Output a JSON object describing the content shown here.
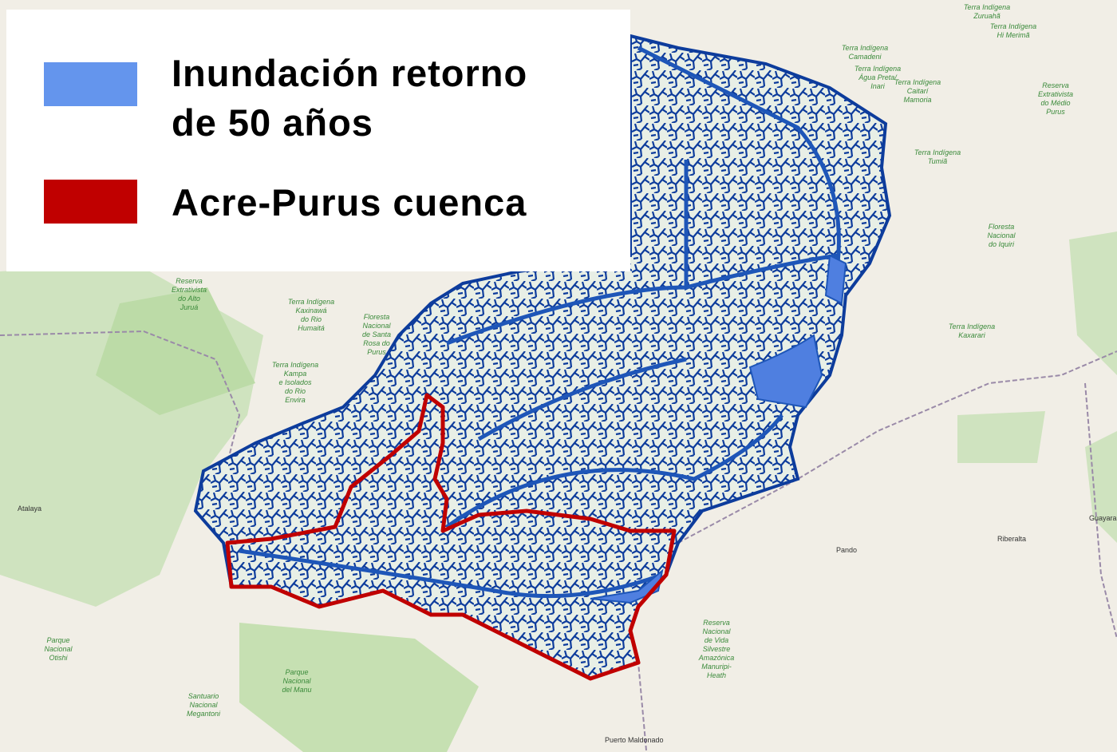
{
  "legend": {
    "items": [
      {
        "label": [
          "Inundación retorno",
          "de 50 años"
        ],
        "color": "#6495ed"
      },
      {
        "label": [
          "Acre-Purus cuenca"
        ],
        "color": "#c00000"
      }
    ]
  },
  "map_labels": [
    [
      "Terra Indígena",
      "Zuruahã"
    ],
    [
      "Terra Indígena",
      "Hi Merimã"
    ],
    [
      "Terra Indígena",
      "Camadeni"
    ],
    [
      "Terra Indígena",
      "Água Preta/",
      "Inari"
    ],
    [
      "Terra Indígena",
      "Caitarí",
      "Mamoria"
    ],
    [
      "Reserva",
      "Extrativista",
      "do Médio",
      "Purus"
    ],
    [
      "Terra Indígena",
      "Tumiã"
    ],
    [
      "Floresta",
      "Nacional",
      "do Iquiri"
    ],
    [
      "Reserva",
      "Extrativista",
      "do Alto",
      "Juruá"
    ],
    [
      "Terra Indígena",
      "Kaxinawá",
      "do Rio",
      "Humaitá"
    ],
    [
      "Floresta",
      "Nacional",
      "de Santa",
      "Rosa do",
      "Purus"
    ],
    [
      "Terra Indígena",
      "Kampa",
      "e Isolados",
      "do Rio",
      "Envira"
    ],
    [
      "Terra Indígena",
      "Kaxarari"
    ],
    [
      "Parque",
      "Nacional",
      "Otishi"
    ],
    [
      "Parque",
      "Nacional",
      "del Manu"
    ],
    [
      "Santuario",
      "Nacional",
      "Megantoni"
    ],
    [
      "Reserva",
      "Nacional",
      "de Vida",
      "Silvestre",
      "Amazónica",
      "Manuripi-",
      "Heath"
    ]
  ],
  "places": [
    "Atalaya",
    "Pando",
    "Riberalta",
    "Guayaramerin",
    "Puerto Maldonado"
  ]
}
